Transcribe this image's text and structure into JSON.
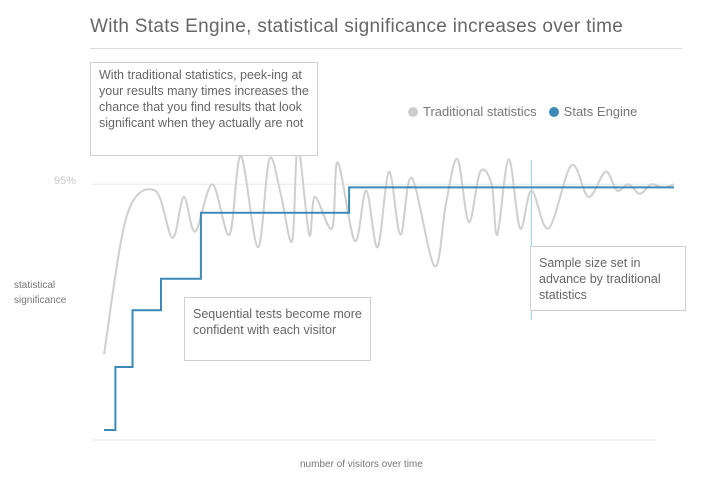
{
  "chart_data": {
    "type": "line",
    "title": "With Stats Engine, statistical significance increases over time",
    "xlabel": "number of visitors over time",
    "ylabel": "statistical significance",
    "y_tick_labels": [
      "95%"
    ],
    "legend_placement": "top-right",
    "grid": false,
    "series": [
      {
        "name": "Traditional statistics",
        "color": "#cccccc",
        "x": [
          0,
          4,
          9,
          12,
          14,
          16,
          19,
          22,
          24,
          27,
          29,
          31,
          33,
          34,
          36,
          37,
          40,
          41,
          44,
          46,
          48,
          50,
          52,
          54,
          58,
          60,
          62,
          64,
          66,
          68,
          69,
          71,
          73,
          75,
          78,
          82,
          85,
          88,
          90,
          92,
          94,
          96,
          98,
          100
        ],
        "y": [
          24,
          68,
          76,
          61,
          74,
          63,
          78,
          62,
          87,
          58,
          86,
          75,
          60,
          90,
          62,
          74,
          64,
          85,
          60,
          76,
          58,
          82,
          62,
          80,
          52,
          72,
          86,
          66,
          82,
          78,
          62,
          86,
          64,
          76,
          64,
          84,
          74,
          82,
          76,
          78,
          75,
          78,
          77,
          78
        ]
      },
      {
        "name": "Stats Engine",
        "color": "#3d89b8",
        "step": true,
        "x": [
          0,
          1,
          2,
          5,
          10,
          17,
          43,
          100
        ],
        "y": [
          0,
          0,
          20,
          38,
          48,
          69,
          77,
          77
        ]
      }
    ],
    "annotations": [
      {
        "text": "With traditional statistics, peek-ing at your results many times increases the chance that you find results that look significant when they actually are not"
      },
      {
        "text": "Sequential tests become more confident with each visitor"
      },
      {
        "text": "Sample size set in advance by traditional statistics",
        "x": 75
      }
    ],
    "reference_line_95": 78
  }
}
